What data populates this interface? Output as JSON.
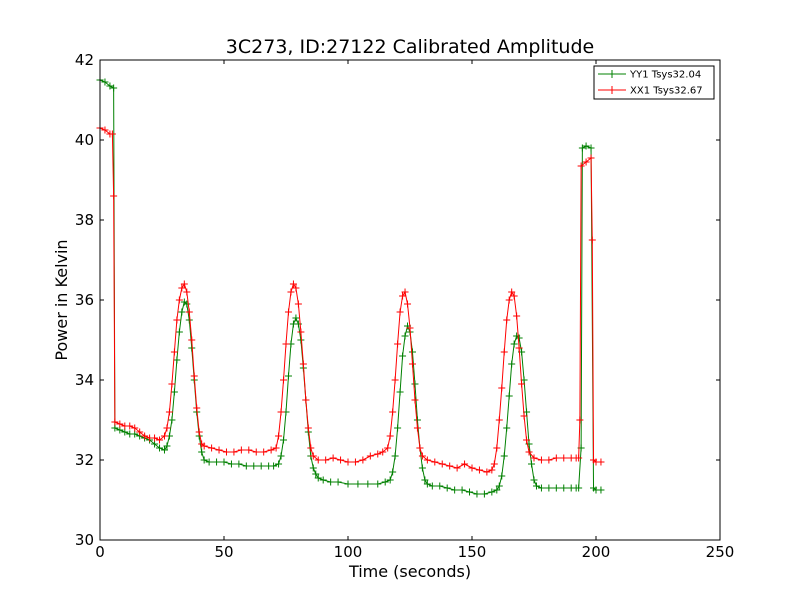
{
  "chart_data": {
    "type": "line",
    "title": "3C273, ID:27122 Calibrated Amplitude",
    "xlabel": "Time (seconds)",
    "ylabel": "Power in Kelvin",
    "xlim": [
      0,
      250
    ],
    "ylim": [
      30,
      42
    ],
    "xticks": [
      "0",
      "50",
      "100",
      "150",
      "200",
      "250"
    ],
    "yticks": [
      "30",
      "32",
      "34",
      "36",
      "38",
      "40",
      "42"
    ],
    "grid": false,
    "legend_position": "top-right",
    "marker": "plus",
    "series": [
      {
        "name": "YY1 Tsys32.04",
        "color": "#008000",
        "points": [
          [
            0,
            41.5
          ],
          [
            2,
            41.45
          ],
          [
            4,
            41.35
          ],
          [
            5.5,
            41.3
          ],
          [
            6,
            32.8
          ],
          [
            8,
            32.75
          ],
          [
            10,
            32.7
          ],
          [
            12,
            32.65
          ],
          [
            14,
            32.65
          ],
          [
            16,
            32.6
          ],
          [
            18,
            32.55
          ],
          [
            20,
            32.5
          ],
          [
            22,
            32.4
          ],
          [
            24,
            32.3
          ],
          [
            26,
            32.25
          ],
          [
            27,
            32.35
          ],
          [
            28,
            32.6
          ],
          [
            29,
            33.0
          ],
          [
            30,
            33.7
          ],
          [
            31,
            34.5
          ],
          [
            32,
            35.2
          ],
          [
            33,
            35.7
          ],
          [
            34,
            35.95
          ],
          [
            35,
            35.9
          ],
          [
            36,
            35.5
          ],
          [
            37,
            34.8
          ],
          [
            38,
            34.0
          ],
          [
            39,
            33.2
          ],
          [
            40,
            32.6
          ],
          [
            41,
            32.2
          ],
          [
            42,
            32.0
          ],
          [
            44,
            31.95
          ],
          [
            47,
            31.95
          ],
          [
            50,
            31.95
          ],
          [
            53,
            31.9
          ],
          [
            56,
            31.9
          ],
          [
            59,
            31.85
          ],
          [
            62,
            31.85
          ],
          [
            65,
            31.85
          ],
          [
            68,
            31.85
          ],
          [
            70,
            31.85
          ],
          [
            72,
            31.9
          ],
          [
            73,
            32.1
          ],
          [
            74,
            32.5
          ],
          [
            75,
            33.2
          ],
          [
            76,
            34.1
          ],
          [
            77,
            34.9
          ],
          [
            78,
            35.4
          ],
          [
            79,
            35.55
          ],
          [
            80,
            35.4
          ],
          [
            81,
            35.0
          ],
          [
            82,
            34.3
          ],
          [
            83,
            33.5
          ],
          [
            84,
            32.7
          ],
          [
            85,
            32.1
          ],
          [
            86,
            31.8
          ],
          [
            87,
            31.65
          ],
          [
            88,
            31.55
          ],
          [
            90,
            31.5
          ],
          [
            93,
            31.45
          ],
          [
            96,
            31.45
          ],
          [
            100,
            31.4
          ],
          [
            104,
            31.4
          ],
          [
            108,
            31.4
          ],
          [
            112,
            31.4
          ],
          [
            115,
            31.45
          ],
          [
            117,
            31.5
          ],
          [
            118,
            31.7
          ],
          [
            119,
            32.1
          ],
          [
            120,
            32.8
          ],
          [
            121,
            33.7
          ],
          [
            122,
            34.6
          ],
          [
            123,
            35.1
          ],
          [
            124,
            35.35
          ],
          [
            125,
            35.2
          ],
          [
            126,
            34.7
          ],
          [
            127,
            33.9
          ],
          [
            128,
            33.0
          ],
          [
            129,
            32.3
          ],
          [
            130,
            31.8
          ],
          [
            131,
            31.5
          ],
          [
            132,
            31.4
          ],
          [
            134,
            31.35
          ],
          [
            137,
            31.35
          ],
          [
            140,
            31.3
          ],
          [
            143,
            31.25
          ],
          [
            146,
            31.25
          ],
          [
            149,
            31.2
          ],
          [
            152,
            31.15
          ],
          [
            155,
            31.15
          ],
          [
            158,
            31.2
          ],
          [
            160,
            31.25
          ],
          [
            161,
            31.35
          ],
          [
            162,
            31.6
          ],
          [
            163,
            32.1
          ],
          [
            164,
            32.8
          ],
          [
            165,
            33.6
          ],
          [
            166,
            34.4
          ],
          [
            167,
            34.9
          ],
          [
            168,
            35.1
          ],
          [
            169,
            35.05
          ],
          [
            170,
            34.7
          ],
          [
            171,
            34.0
          ],
          [
            172,
            33.2
          ],
          [
            173,
            32.4
          ],
          [
            174,
            31.9
          ],
          [
            175,
            31.5
          ],
          [
            176,
            31.35
          ],
          [
            178,
            31.3
          ],
          [
            181,
            31.3
          ],
          [
            184,
            31.3
          ],
          [
            187,
            31.3
          ],
          [
            190,
            31.3
          ],
          [
            192,
            31.3
          ],
          [
            193,
            31.3
          ],
          [
            194,
            32.3
          ],
          [
            194.5,
            39.8
          ],
          [
            196,
            39.85
          ],
          [
            198,
            39.8
          ],
          [
            199,
            31.3
          ],
          [
            200,
            31.25
          ],
          [
            202,
            31.25
          ]
        ]
      },
      {
        "name": "XX1 Tsys32.67",
        "color": "#ff0000",
        "points": [
          [
            0,
            40.3
          ],
          [
            2,
            40.25
          ],
          [
            4,
            40.15
          ],
          [
            5,
            40.15
          ],
          [
            5.5,
            38.6
          ],
          [
            6,
            32.95
          ],
          [
            8,
            32.9
          ],
          [
            10,
            32.85
          ],
          [
            12,
            32.85
          ],
          [
            14,
            32.8
          ],
          [
            16,
            32.7
          ],
          [
            18,
            32.6
          ],
          [
            20,
            32.55
          ],
          [
            22,
            32.55
          ],
          [
            24,
            32.5
          ],
          [
            26,
            32.6
          ],
          [
            27,
            32.8
          ],
          [
            28,
            33.2
          ],
          [
            29,
            33.9
          ],
          [
            30,
            34.7
          ],
          [
            31,
            35.5
          ],
          [
            32,
            36.0
          ],
          [
            33,
            36.3
          ],
          [
            34,
            36.4
          ],
          [
            35,
            36.2
          ],
          [
            36,
            35.7
          ],
          [
            37,
            35.0
          ],
          [
            38,
            34.1
          ],
          [
            39,
            33.3
          ],
          [
            40,
            32.7
          ],
          [
            41,
            32.4
          ],
          [
            42,
            32.35
          ],
          [
            45,
            32.3
          ],
          [
            48,
            32.25
          ],
          [
            51,
            32.2
          ],
          [
            54,
            32.2
          ],
          [
            57,
            32.25
          ],
          [
            60,
            32.25
          ],
          [
            63,
            32.2
          ],
          [
            66,
            32.2
          ],
          [
            69,
            32.25
          ],
          [
            71,
            32.3
          ],
          [
            72,
            32.6
          ],
          [
            73,
            33.2
          ],
          [
            74,
            34.0
          ],
          [
            75,
            34.9
          ],
          [
            76,
            35.7
          ],
          [
            77,
            36.2
          ],
          [
            78,
            36.4
          ],
          [
            79,
            36.3
          ],
          [
            80,
            35.9
          ],
          [
            81,
            35.2
          ],
          [
            82,
            34.4
          ],
          [
            83,
            33.5
          ],
          [
            84,
            32.8
          ],
          [
            85,
            32.3
          ],
          [
            86,
            32.1
          ],
          [
            88,
            32.0
          ],
          [
            91,
            32.0
          ],
          [
            94,
            32.05
          ],
          [
            97,
            32.0
          ],
          [
            100,
            31.95
          ],
          [
            103,
            31.95
          ],
          [
            106,
            32.0
          ],
          [
            109,
            32.1
          ],
          [
            112,
            32.15
          ],
          [
            114,
            32.2
          ],
          [
            116,
            32.3
          ],
          [
            117,
            32.6
          ],
          [
            118,
            33.2
          ],
          [
            119,
            34.0
          ],
          [
            120,
            34.9
          ],
          [
            121,
            35.7
          ],
          [
            122,
            36.1
          ],
          [
            123,
            36.2
          ],
          [
            124,
            35.9
          ],
          [
            125,
            35.3
          ],
          [
            126,
            34.4
          ],
          [
            127,
            33.5
          ],
          [
            128,
            32.8
          ],
          [
            129,
            32.3
          ],
          [
            130,
            32.1
          ],
          [
            132,
            32.0
          ],
          [
            135,
            31.95
          ],
          [
            138,
            31.9
          ],
          [
            141,
            31.85
          ],
          [
            144,
            31.8
          ],
          [
            147,
            31.9
          ],
          [
            150,
            31.8
          ],
          [
            153,
            31.75
          ],
          [
            156,
            31.7
          ],
          [
            158,
            31.75
          ],
          [
            159,
            31.9
          ],
          [
            160,
            32.3
          ],
          [
            161,
            33.0
          ],
          [
            162,
            33.8
          ],
          [
            163,
            34.7
          ],
          [
            164,
            35.5
          ],
          [
            165,
            36.0
          ],
          [
            166,
            36.2
          ],
          [
            167,
            36.1
          ],
          [
            168,
            35.6
          ],
          [
            169,
            34.8
          ],
          [
            170,
            33.9
          ],
          [
            171,
            33.1
          ],
          [
            172,
            32.5
          ],
          [
            173,
            32.2
          ],
          [
            175,
            32.05
          ],
          [
            178,
            32.0
          ],
          [
            181,
            32.0
          ],
          [
            184,
            32.05
          ],
          [
            187,
            32.05
          ],
          [
            190,
            32.05
          ],
          [
            192,
            32.05
          ],
          [
            193,
            32.05
          ],
          [
            193.5,
            33.0
          ],
          [
            194,
            39.35
          ],
          [
            196,
            39.45
          ],
          [
            198,
            39.55
          ],
          [
            198.5,
            37.5
          ],
          [
            199,
            32.0
          ],
          [
            200,
            31.95
          ],
          [
            202,
            31.95
          ]
        ]
      }
    ]
  }
}
